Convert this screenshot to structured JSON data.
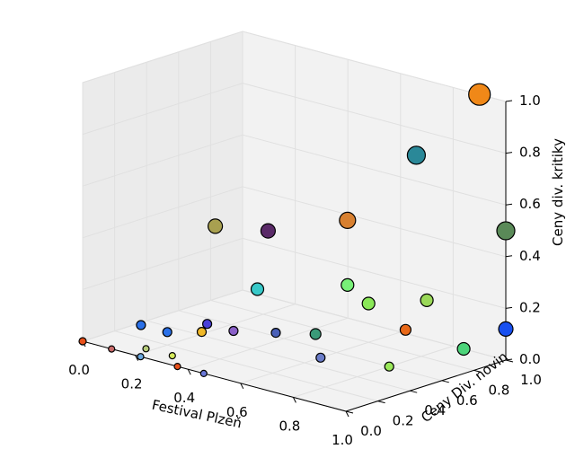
{
  "chart_data": {
    "type": "scatter3d",
    "xlabel": "Festival Plzeň",
    "ylabel": "Ceny Div. novin",
    "zlabel": "Ceny div. kritiky",
    "xlim": [
      0,
      1
    ],
    "ylim": [
      0,
      1
    ],
    "zlim": [
      0,
      1
    ],
    "grid": true,
    "x_ticks": [
      "0.0",
      "0.2",
      "0.4",
      "0.6",
      "0.8",
      "1.0"
    ],
    "y_ticks": [
      "0.0",
      "0.2",
      "0.4",
      "0.6",
      "0.8",
      "1.0"
    ],
    "z_ticks": [
      "0.0",
      "0.2",
      "0.4",
      "0.6",
      "0.8",
      "1.0"
    ],
    "points": [
      {
        "x": 0.0,
        "y": 0.0,
        "z": 0.0,
        "size": 4,
        "color": "#e8501a"
      },
      {
        "x": 0.11,
        "y": 0.0,
        "z": 0.0,
        "size": 3.5,
        "color": "#c96a6a"
      },
      {
        "x": 0.18,
        "y": 0.1,
        "z": 0.0,
        "size": 3.5,
        "color": "#b6cc7a"
      },
      {
        "x": 0.22,
        "y": 0.0,
        "z": 0.0,
        "size": 3.5,
        "color": "#6aa8e0"
      },
      {
        "x": 0.28,
        "y": 0.1,
        "z": 0.0,
        "size": 3.5,
        "color": "#d4e85a"
      },
      {
        "x": 0.36,
        "y": 0.0,
        "z": 0.0,
        "size": 3.5,
        "color": "#e8501a"
      },
      {
        "x": 0.46,
        "y": 0.0,
        "z": 0.0,
        "size": 3.5,
        "color": "#6a78d8"
      },
      {
        "x": 0.6,
        "y": 0.5,
        "z": 0.0,
        "size": 5,
        "color": "#6a7cc8"
      },
      {
        "x": 0.8,
        "y": 0.6,
        "z": 0.0,
        "size": 5,
        "color": "#9ae85a"
      },
      {
        "x": 0.84,
        "y": 1.0,
        "z": 0.0,
        "size": 7,
        "color": "#4cd47a"
      },
      {
        "x": 0.1,
        "y": 0.2,
        "z": 0.05,
        "size": 5,
        "color": "#2a70e8"
      },
      {
        "x": 0.2,
        "y": 0.2,
        "z": 0.05,
        "size": 5,
        "color": "#2a70e8"
      },
      {
        "x": 0.27,
        "y": 0.3,
        "z": 0.05,
        "size": 5,
        "color": "#f0b828"
      },
      {
        "x": 0.23,
        "y": 0.4,
        "z": 0.05,
        "size": 5,
        "color": "#4a40d8"
      },
      {
        "x": 0.33,
        "y": 0.4,
        "z": 0.05,
        "size": 5,
        "color": "#8a60c8"
      },
      {
        "x": 0.43,
        "y": 0.5,
        "z": 0.05,
        "size": 5,
        "color": "#4a60b8"
      },
      {
        "x": 0.52,
        "y": 0.6,
        "z": 0.05,
        "size": 6,
        "color": "#3a9a78"
      },
      {
        "x": 0.68,
        "y": 0.9,
        "z": 0.05,
        "size": 6,
        "color": "#e86818"
      },
      {
        "x": 0.6,
        "y": 0.8,
        "z": 0.15,
        "size": 7,
        "color": "#8ae858"
      },
      {
        "x": 0.7,
        "y": 1.0,
        "z": 0.15,
        "size": 7,
        "color": "#9ad858"
      },
      {
        "x": 0.52,
        "y": 0.8,
        "z": 0.2,
        "size": 7,
        "color": "#78f078"
      },
      {
        "x": 1.0,
        "y": 1.0,
        "z": 0.12,
        "size": 8,
        "color": "#1850f0"
      },
      {
        "x": 0.36,
        "y": 0.5,
        "z": 0.2,
        "size": 7,
        "color": "#38c8c8"
      },
      {
        "x": 0.2,
        "y": 0.5,
        "z": 0.4,
        "size": 8,
        "color": "#a8a050"
      },
      {
        "x": 0.34,
        "y": 0.6,
        "z": 0.4,
        "size": 8,
        "color": "#5a2a68"
      },
      {
        "x": 0.52,
        "y": 0.8,
        "z": 0.45,
        "size": 9,
        "color": "#d88030"
      },
      {
        "x": 0.66,
        "y": 1.0,
        "z": 0.7,
        "size": 10,
        "color": "#2a8898"
      },
      {
        "x": 1.0,
        "y": 1.0,
        "z": 0.5,
        "size": 10,
        "color": "#5a8a58"
      },
      {
        "x": 0.9,
        "y": 1.0,
        "z": 1.0,
        "size": 12,
        "color": "#f08818"
      }
    ]
  }
}
